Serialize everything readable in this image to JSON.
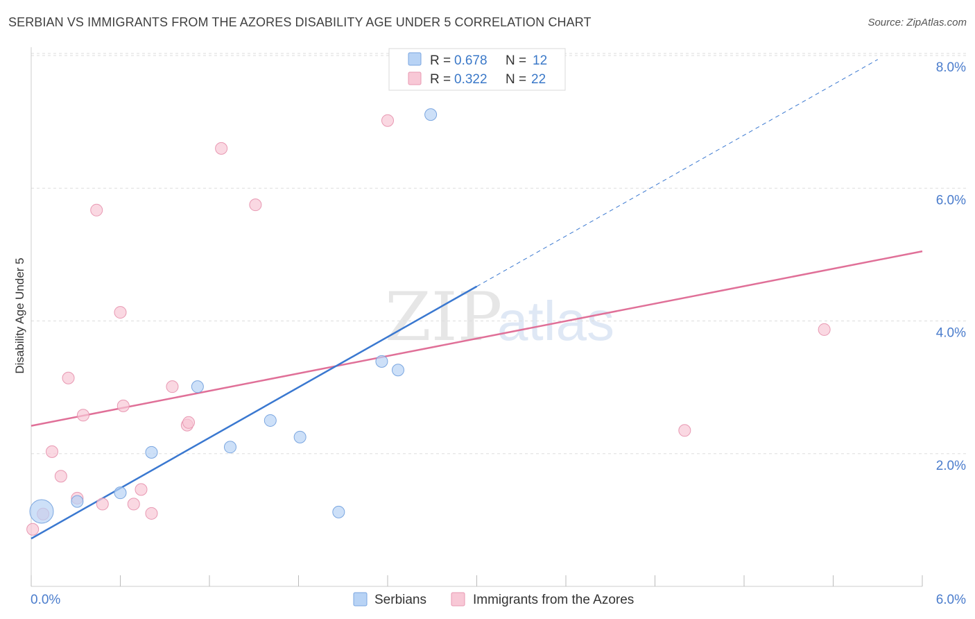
{
  "header": {
    "title": "SERBIAN VS IMMIGRANTS FROM THE AZORES DISABILITY AGE UNDER 5 CORRELATION CHART",
    "source": "Source: ZipAtlas.com"
  },
  "watermark": {
    "zip": "ZIP",
    "atlas": "atlas"
  },
  "legend": {
    "r_label": "R = ",
    "n_label": "N = ",
    "entries": [
      {
        "r": "0.678",
        "n": "12",
        "fill": "#b8d3f5",
        "stroke": "#7aa6e0"
      },
      {
        "r": "0.322",
        "n": "22",
        "fill": "#f8c8d6",
        "stroke": "#e898b2"
      }
    ]
  },
  "bottom_legend": [
    {
      "label": "Serbians",
      "fill": "#b8d3f5",
      "stroke": "#7aa6e0"
    },
    {
      "label": "Immigrants from the Azores",
      "fill": "#f8c8d6",
      "stroke": "#e898b2"
    }
  ],
  "colors": {
    "serbian_line": "#3a78d0",
    "azores_line": "#e07098",
    "tick_label": "#4a7ccc",
    "grid": "#dddddd"
  },
  "chart_data": {
    "type": "scatter",
    "title": "SERBIAN VS IMMIGRANTS FROM THE AZORES DISABILITY AGE UNDER 5 CORRELATION CHART",
    "xlabel": "",
    "ylabel": "Disability Age Under 5",
    "xlim": [
      0,
      6.0
    ],
    "ylim": [
      0,
      8.0
    ],
    "x_tick_labels": [
      "0.0%",
      "6.0%"
    ],
    "y_ticks": [
      2.0,
      4.0,
      6.0,
      8.0
    ],
    "y_tick_labels": [
      "2.0%",
      "4.0%",
      "6.0%",
      "8.0%"
    ],
    "series": [
      {
        "name": "Serbians",
        "r": 0.678,
        "n": 12,
        "points": [
          {
            "x": 0.07,
            "y": 1.13,
            "size": "large"
          },
          {
            "x": 0.31,
            "y": 1.28
          },
          {
            "x": 0.6,
            "y": 1.41
          },
          {
            "x": 0.81,
            "y": 2.02
          },
          {
            "x": 1.12,
            "y": 3.01
          },
          {
            "x": 1.34,
            "y": 2.1
          },
          {
            "x": 1.61,
            "y": 2.5
          },
          {
            "x": 1.81,
            "y": 2.25
          },
          {
            "x": 2.07,
            "y": 1.12
          },
          {
            "x": 2.36,
            "y": 3.39
          },
          {
            "x": 2.47,
            "y": 3.26
          },
          {
            "x": 2.69,
            "y": 7.11
          }
        ],
        "trend": {
          "x0": 0.0,
          "y0": 0.72,
          "x1": 3.0,
          "y1": 4.52,
          "dash_to_x": 5.7,
          "dash_to_y": 7.94
        }
      },
      {
        "name": "Immigrants from the Azores",
        "r": 0.322,
        "n": 22,
        "points": [
          {
            "x": 0.01,
            "y": 0.86
          },
          {
            "x": 0.08,
            "y": 1.09
          },
          {
            "x": 0.14,
            "y": 2.03
          },
          {
            "x": 0.2,
            "y": 1.66
          },
          {
            "x": 0.25,
            "y": 3.14
          },
          {
            "x": 0.31,
            "y": 1.33
          },
          {
            "x": 0.35,
            "y": 2.58
          },
          {
            "x": 0.44,
            "y": 5.67
          },
          {
            "x": 0.48,
            "y": 1.24
          },
          {
            "x": 0.6,
            "y": 4.13
          },
          {
            "x": 0.62,
            "y": 2.72
          },
          {
            "x": 0.69,
            "y": 1.24
          },
          {
            "x": 0.74,
            "y": 1.46
          },
          {
            "x": 0.81,
            "y": 1.1
          },
          {
            "x": 0.95,
            "y": 3.01
          },
          {
            "x": 1.05,
            "y": 2.43
          },
          {
            "x": 1.06,
            "y": 2.47
          },
          {
            "x": 1.28,
            "y": 6.6
          },
          {
            "x": 1.51,
            "y": 5.75
          },
          {
            "x": 2.4,
            "y": 7.02
          },
          {
            "x": 4.4,
            "y": 2.35
          },
          {
            "x": 5.34,
            "y": 3.87
          }
        ],
        "trend": {
          "x0": 0.0,
          "y0": 2.42,
          "x1": 6.0,
          "y1": 5.05
        }
      }
    ]
  }
}
